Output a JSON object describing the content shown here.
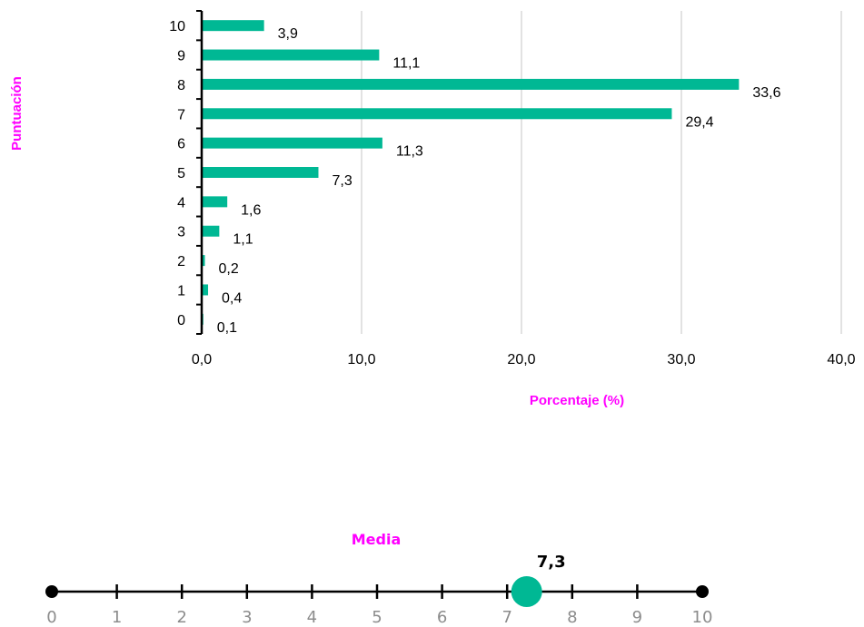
{
  "colors": {
    "bar": "#00b894",
    "title": "#ff00ff",
    "grid": "#d9d9d9",
    "axis": "#000000"
  },
  "chart_data": [
    {
      "type": "bar",
      "orientation": "horizontal",
      "categories": [
        "0",
        "1",
        "2",
        "3",
        "4",
        "5",
        "6",
        "7",
        "8",
        "9",
        "10"
      ],
      "values": [
        0.1,
        0.4,
        0.2,
        1.1,
        1.6,
        7.3,
        11.3,
        29.4,
        33.6,
        11.1,
        3.9
      ],
      "value_labels": [
        "0,1",
        "0,4",
        "0,2",
        "1,1",
        "1,6",
        "7,3",
        "11,3",
        "29,4",
        "33,6",
        "11,1",
        "3,9"
      ],
      "xlabel": "Porcentaje (%)",
      "ylabel": "Puntuación",
      "xlim": [
        0,
        40
      ],
      "xticks": [
        0,
        10,
        20,
        30,
        40
      ],
      "xtick_labels": [
        "0,0",
        "10,0",
        "20,0",
        "30,0",
        "40,0"
      ],
      "grid": "vertical"
    },
    {
      "type": "scale",
      "title": "Media",
      "range": [
        0,
        10
      ],
      "ticks": [
        0,
        1,
        2,
        3,
        4,
        5,
        6,
        7,
        8,
        9,
        10
      ],
      "tick_labels": [
        "0",
        "1",
        "2",
        "3",
        "4",
        "5",
        "6",
        "7",
        "8",
        "9",
        "10"
      ],
      "value": 7.3,
      "value_label": "7,3"
    }
  ]
}
